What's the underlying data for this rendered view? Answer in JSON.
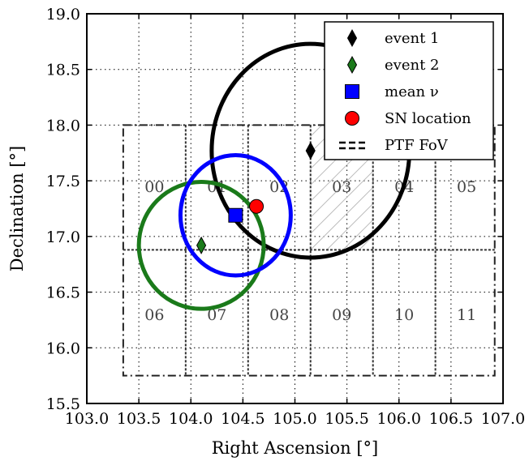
{
  "chart_data": {
    "type": "scatter",
    "xlabel": "Right Ascension [°]",
    "ylabel": "Declination [°]",
    "xlim": [
      103.0,
      107.0
    ],
    "ylim": [
      15.5,
      19.0
    ],
    "xticks": [
      "103.0",
      "103.5",
      "104.0",
      "104.5",
      "105.0",
      "105.5",
      "106.0",
      "106.5",
      "107.0"
    ],
    "yticks": [
      "15.5",
      "16.0",
      "16.5",
      "17.0",
      "17.5",
      "18.0",
      "18.5",
      "19.0"
    ],
    "grid": true,
    "legend_position": "top-right",
    "points": [
      {
        "name": "event 1",
        "x": 105.15,
        "y": 17.77,
        "marker": "diamond",
        "color": "#000000"
      },
      {
        "name": "event 2",
        "x": 104.1,
        "y": 16.92,
        "marker": "diamond",
        "color": "#1a7a1a"
      },
      {
        "name": "mean ν",
        "x": 104.43,
        "y": 17.19,
        "marker": "square",
        "color": "#0000ff"
      },
      {
        "name": "SN location",
        "x": 104.63,
        "y": 17.27,
        "marker": "circle",
        "color": "#ff0000"
      }
    ],
    "error_circles": [
      {
        "series": "event 1",
        "cx": 105.15,
        "cy": 17.77,
        "rx": 0.95,
        "ry": 0.96,
        "color": "#000000"
      },
      {
        "series": "event 2",
        "cx": 104.1,
        "cy": 16.92,
        "rx": 0.6,
        "ry": 0.57,
        "color": "#1a7a1a"
      },
      {
        "series": "mean ν",
        "cx": 104.43,
        "cy": 17.19,
        "rx": 0.53,
        "ry": 0.54,
        "color": "#0000ff"
      }
    ],
    "legend": [
      {
        "label": "event 1",
        "marker": "diamond",
        "color": "#000000"
      },
      {
        "label": "event 2",
        "marker": "diamond",
        "color": "#1a7a1a"
      },
      {
        "label": "mean ν",
        "marker": "square",
        "color": "#0000ff"
      },
      {
        "label": "SN location",
        "marker": "circle",
        "color": "#ff0000"
      },
      {
        "label": "PTF FoV",
        "marker": "dashed-line",
        "color": "#000000"
      }
    ],
    "fov": {
      "outer": {
        "x": [
          103.35,
          106.92
        ],
        "y": [
          15.75,
          18.0
        ]
      },
      "col_edges": [
        103.35,
        103.95,
        104.55,
        105.15,
        105.75,
        106.35,
        106.92
      ],
      "row_edges": [
        15.75,
        16.88,
        18.0
      ],
      "fields": [
        {
          "label": "00",
          "x": 103.65,
          "y": 17.45
        },
        {
          "label": "01",
          "x": 104.25,
          "y": 17.45
        },
        {
          "label": "02",
          "x": 104.85,
          "y": 17.45
        },
        {
          "label": "03",
          "x": 105.45,
          "y": 17.45
        },
        {
          "label": "04",
          "x": 106.05,
          "y": 17.45
        },
        {
          "label": "05",
          "x": 106.65,
          "y": 17.45
        },
        {
          "label": "06",
          "x": 103.65,
          "y": 16.3
        },
        {
          "label": "07",
          "x": 104.25,
          "y": 16.3
        },
        {
          "label": "08",
          "x": 104.85,
          "y": 16.3
        },
        {
          "label": "09",
          "x": 105.45,
          "y": 16.3
        },
        {
          "label": "10",
          "x": 106.05,
          "y": 16.3
        },
        {
          "label": "11",
          "x": 106.65,
          "y": 16.3
        }
      ],
      "hatched_field": {
        "label": "03",
        "x": [
          105.15,
          105.75
        ],
        "y": [
          16.88,
          18.0
        ]
      }
    }
  }
}
